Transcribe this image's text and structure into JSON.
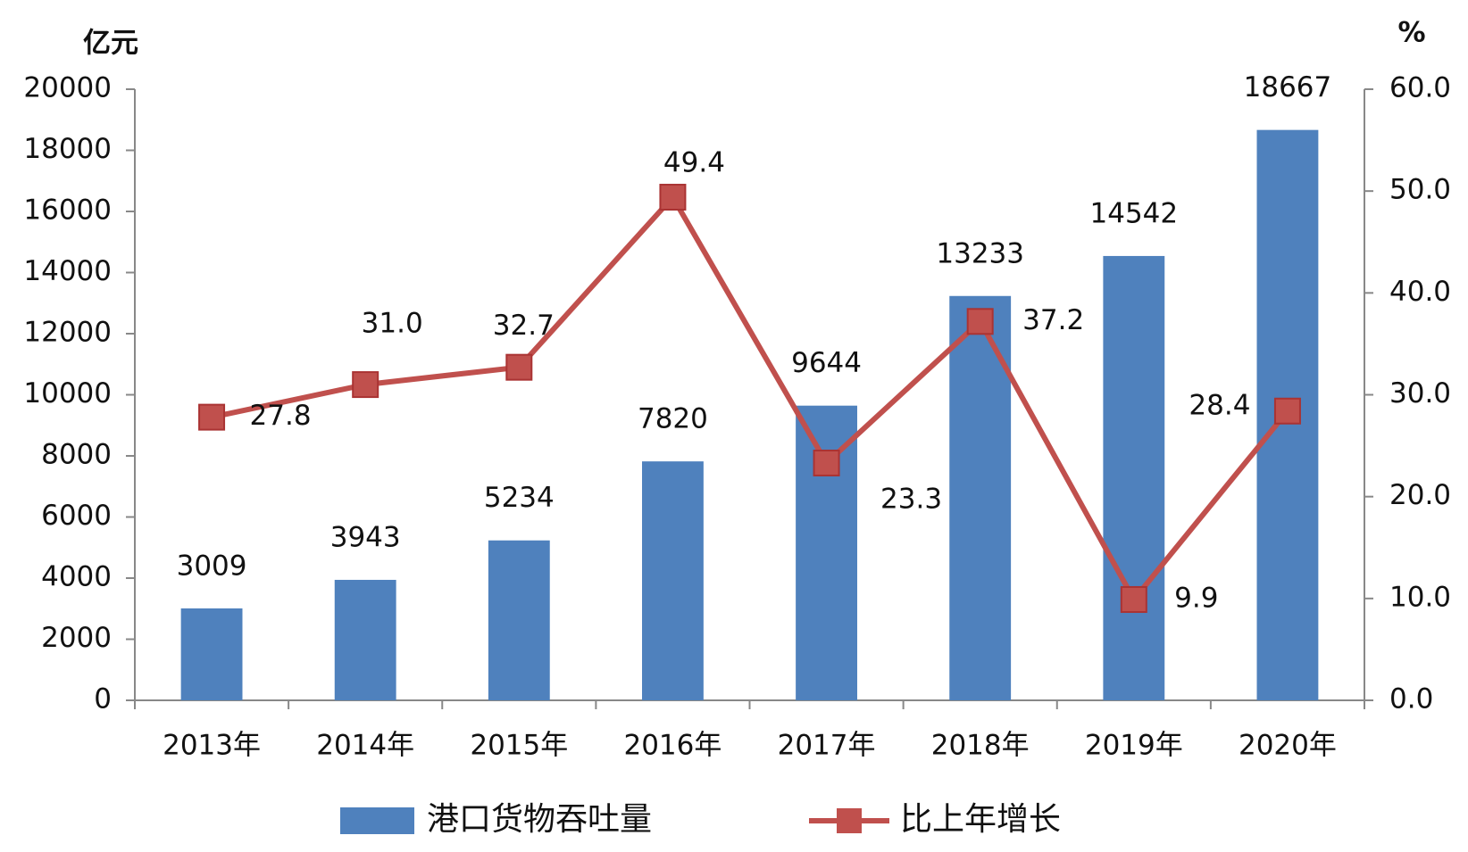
{
  "chart_data": {
    "type": "bar-line",
    "y_label": "亿元",
    "y2_label": "%",
    "categories": [
      "2013年",
      "2014年",
      "2015年",
      "2016年",
      "2017年",
      "2018年",
      "2019年",
      "2020年"
    ],
    "series": [
      {
        "name": "港口货物吞吐量",
        "type": "bar",
        "color": "#4f81bd",
        "values": [
          3009,
          3943,
          5234,
          7820,
          9644,
          13233,
          14542,
          18667
        ]
      },
      {
        "name": "比上年增长",
        "type": "line",
        "axis": "y2",
        "color": "#c0504d",
        "values": [
          27.8,
          31.0,
          32.7,
          49.4,
          23.3,
          37.2,
          9.9,
          28.4
        ],
        "value_labels": [
          "27.8",
          "31.0",
          "32.7",
          "49.4",
          "23.3",
          "37.2",
          "9.9",
          "28.4"
        ]
      }
    ],
    "ylim": [
      0,
      20000
    ],
    "yticks": [
      0,
      2000,
      4000,
      6000,
      8000,
      10000,
      12000,
      14000,
      16000,
      18000,
      20000
    ],
    "y2lim": [
      0,
      60
    ],
    "y2ticks": [
      {
        "value": 0,
        "label": "0.0"
      },
      {
        "value": 10,
        "label": "10.0"
      },
      {
        "value": 20,
        "label": "20.0"
      },
      {
        "value": 30,
        "label": "30.0"
      },
      {
        "value": 40,
        "label": "40.0"
      },
      {
        "value": 50,
        "label": "50.0"
      },
      {
        "value": 60,
        "label": "60.0"
      }
    ],
    "legend": "bottom"
  }
}
